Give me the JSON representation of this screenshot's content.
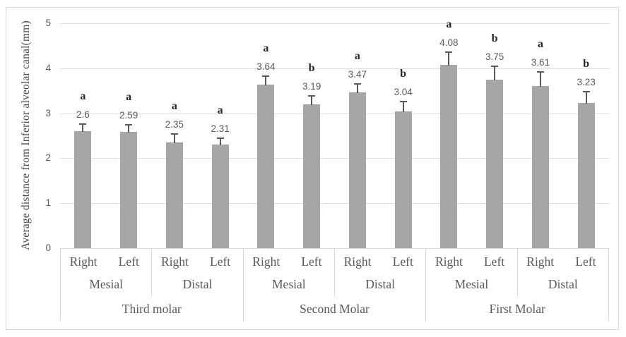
{
  "chart_data": {
    "type": "bar",
    "title": "",
    "xlabel": "",
    "ylabel": "Average distance from Inferior alveolar canal(mm)",
    "ylim": [
      0,
      5
    ],
    "yticks": [
      "0",
      "1",
      "2",
      "3",
      "4",
      "5"
    ],
    "grid": true,
    "legend": "none",
    "bar_color": "#a6a6a6",
    "error_bar_color": "#595959",
    "gridline_color": "#dedede",
    "label_color": "#595959",
    "sig_letter_color": "#262626",
    "groups": [
      {
        "molar": "Third molar",
        "sites": [
          {
            "site": "Mesial",
            "bars": [
              {
                "side": "Right",
                "value": 2.6,
                "value_label": "2.6",
                "error": 0.15,
                "sig": "a"
              },
              {
                "side": "Left",
                "value": 2.59,
                "value_label": "2.59",
                "error": 0.14,
                "sig": "a"
              }
            ]
          },
          {
            "site": "Distal",
            "bars": [
              {
                "side": "Right",
                "value": 2.35,
                "value_label": "2.35",
                "error": 0.17,
                "sig": "a"
              },
              {
                "side": "Left",
                "value": 2.31,
                "value_label": "2.31",
                "error": 0.12,
                "sig": "a"
              }
            ]
          }
        ]
      },
      {
        "molar": "Second Molar",
        "sites": [
          {
            "site": "Mesial",
            "bars": [
              {
                "side": "Right",
                "value": 3.64,
                "value_label": "3.64",
                "error": 0.17,
                "sig": "a"
              },
              {
                "side": "Left",
                "value": 3.19,
                "value_label": "3.19",
                "error": 0.18,
                "sig": "b"
              }
            ]
          },
          {
            "site": "Distal",
            "bars": [
              {
                "side": "Right",
                "value": 3.47,
                "value_label": "3.47",
                "error": 0.16,
                "sig": "a"
              },
              {
                "side": "Left",
                "value": 3.04,
                "value_label": "3.04",
                "error": 0.2,
                "sig": "b"
              }
            ]
          }
        ]
      },
      {
        "molar": "First Molar",
        "sites": [
          {
            "site": "Mesial",
            "bars": [
              {
                "side": "Right",
                "value": 4.08,
                "value_label": "4.08",
                "error": 0.26,
                "sig": "a"
              },
              {
                "side": "Left",
                "value": 3.75,
                "value_label": "3.75",
                "error": 0.28,
                "sig": "b"
              }
            ]
          },
          {
            "site": "Distal",
            "bars": [
              {
                "side": "Right",
                "value": 3.61,
                "value_label": "3.61",
                "error": 0.3,
                "sig": "a"
              },
              {
                "side": "Left",
                "value": 3.23,
                "value_label": "3.23",
                "error": 0.24,
                "sig": "b"
              }
            ]
          }
        ]
      }
    ]
  }
}
